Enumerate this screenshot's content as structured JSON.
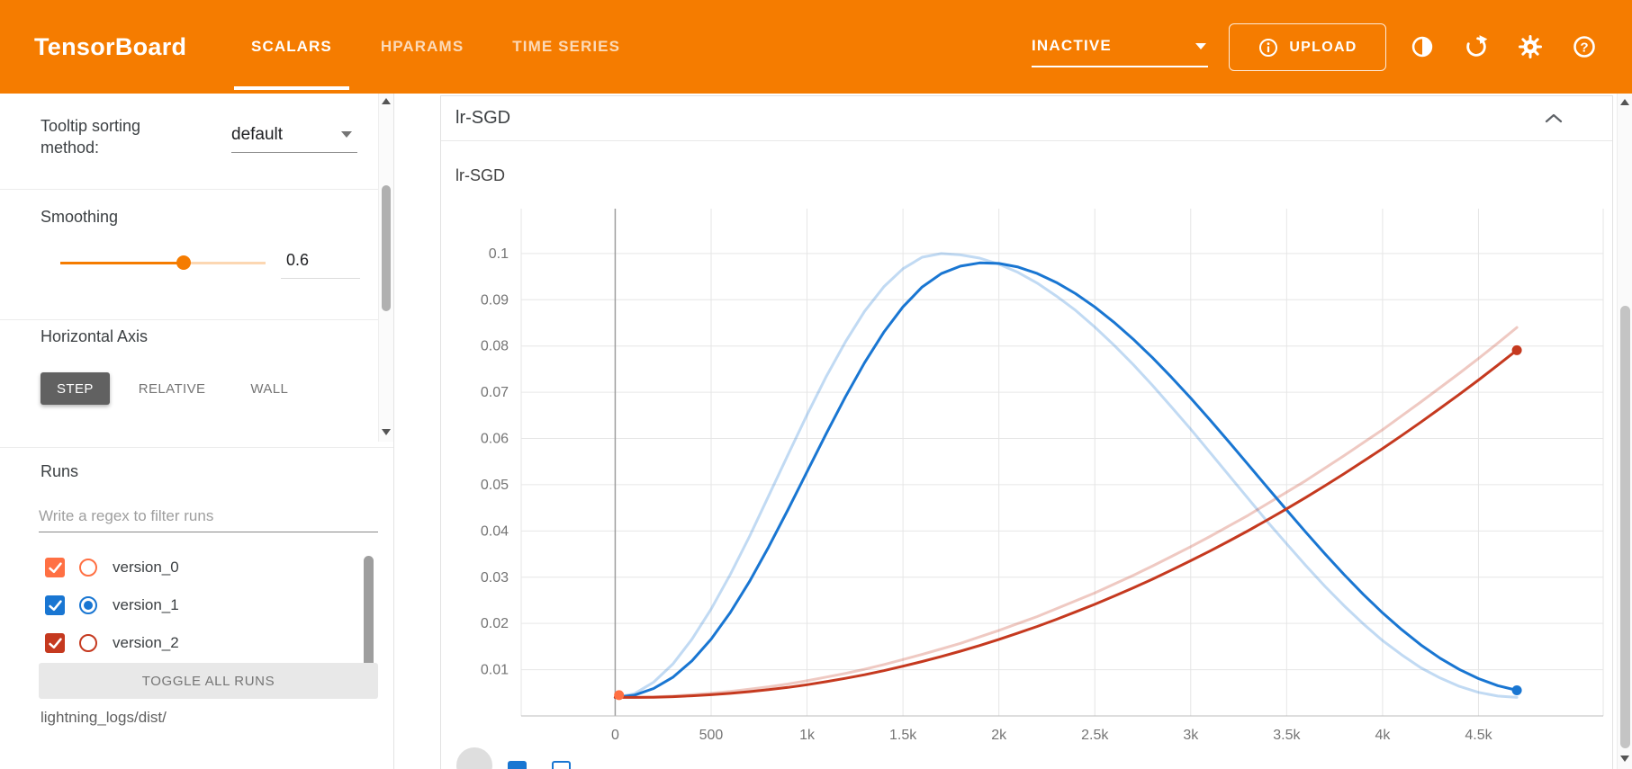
{
  "topbar": {
    "title": "TensorBoard",
    "tabs": [
      {
        "label": "SCALARS",
        "active": true
      },
      {
        "label": "HPARAMS",
        "active": false
      },
      {
        "label": "TIME SERIES",
        "active": false
      }
    ],
    "status_dropdown": "INACTIVE",
    "upload_label": "UPLOAD",
    "icons": [
      "info-circle-icon",
      "brightness-toggle-icon",
      "refresh-icon",
      "gear-icon",
      "help-icon"
    ],
    "color": "#f57c00"
  },
  "sidebar": {
    "tooltip_sorting": {
      "label": "Tooltip sorting method:",
      "value": "default"
    },
    "smoothing": {
      "label": "Smoothing",
      "value": "0.6",
      "fraction": 0.6
    },
    "horizontal_axis": {
      "label": "Horizontal Axis",
      "options": [
        {
          "label": "STEP",
          "active": true
        },
        {
          "label": "RELATIVE",
          "active": false
        },
        {
          "label": "WALL",
          "active": false
        }
      ]
    },
    "runs": {
      "label": "Runs",
      "filter_placeholder": "Write a regex to filter runs",
      "items": [
        {
          "name": "version_0",
          "color": "#ff7043",
          "checked": true,
          "radio_selected": false
        },
        {
          "name": "version_1",
          "color": "#1976d2",
          "checked": true,
          "radio_selected": true
        },
        {
          "name": "version_2",
          "color": "#c5391f",
          "checked": true,
          "radio_selected": false
        }
      ],
      "toggle_all_label": "TOGGLE ALL RUNS",
      "log_dir": "lightning_logs/dist/"
    }
  },
  "main": {
    "card_title": "lr-SGD"
  },
  "chart_data": {
    "type": "line",
    "title": "lr-SGD",
    "xlabel": "",
    "ylabel": "",
    "xlim": [
      -490,
      5150
    ],
    "ylim": [
      0,
      0.1097
    ],
    "grid": true,
    "legend": "none",
    "smoothing": 0.6,
    "x_ticks": [
      {
        "v": 0,
        "label": "0"
      },
      {
        "v": 500,
        "label": "500"
      },
      {
        "v": 1000,
        "label": "1k"
      },
      {
        "v": 1500,
        "label": "1.5k"
      },
      {
        "v": 2000,
        "label": "2k"
      },
      {
        "v": 2500,
        "label": "2.5k"
      },
      {
        "v": 3000,
        "label": "3k"
      },
      {
        "v": 3500,
        "label": "3.5k"
      },
      {
        "v": 4000,
        "label": "4k"
      },
      {
        "v": 4500,
        "label": "4.5k"
      }
    ],
    "y_ticks": [
      {
        "v": 0.01,
        "label": "0.01"
      },
      {
        "v": 0.02,
        "label": "0.02"
      },
      {
        "v": 0.03,
        "label": "0.03"
      },
      {
        "v": 0.04,
        "label": "0.04"
      },
      {
        "v": 0.05,
        "label": "0.05"
      },
      {
        "v": 0.06,
        "label": "0.06"
      },
      {
        "v": 0.07,
        "label": "0.07"
      },
      {
        "v": 0.08,
        "label": "0.08"
      },
      {
        "v": 0.09,
        "label": "0.09"
      },
      {
        "v": 0.1,
        "label": "0.1"
      }
    ],
    "series": [
      {
        "name": "version_1",
        "color": "#1976d2",
        "x0": 0,
        "dx": 100,
        "y": [
          0.004,
          0.0048,
          0.0073,
          0.0112,
          0.0166,
          0.0231,
          0.0306,
          0.0388,
          0.0476,
          0.0564,
          0.0651,
          0.0734,
          0.0809,
          0.0875,
          0.0928,
          0.0967,
          0.0992,
          0.1,
          0.0997,
          0.099,
          0.0977,
          0.0959,
          0.0936,
          0.0908,
          0.0877,
          0.0841,
          0.0802,
          0.076,
          0.0715,
          0.0668,
          0.062,
          0.057,
          0.052,
          0.047,
          0.042,
          0.0372,
          0.0325,
          0.028,
          0.0238,
          0.0199,
          0.0163,
          0.0132,
          0.0104,
          0.0082,
          0.0064,
          0.0051,
          0.0043,
          0.004
        ]
      },
      {
        "name": "version_2",
        "color": "#c5391f",
        "x0": 0,
        "dx": 100,
        "y": [
          0.004,
          0.004,
          0.0041,
          0.0043,
          0.0046,
          0.0049,
          0.0053,
          0.0058,
          0.0063,
          0.0069,
          0.0076,
          0.0084,
          0.0092,
          0.0101,
          0.0111,
          0.0122,
          0.0133,
          0.0145,
          0.0157,
          0.0171,
          0.0185,
          0.02,
          0.0215,
          0.0232,
          0.0249,
          0.0266,
          0.0285,
          0.0304,
          0.0324,
          0.0345,
          0.0366,
          0.0388,
          0.0411,
          0.0434,
          0.0459,
          0.0484,
          0.0509,
          0.0536,
          0.0563,
          0.0591,
          0.0619,
          0.0649,
          0.0679,
          0.071,
          0.0741,
          0.0773,
          0.0806,
          0.084
        ]
      }
    ],
    "markers": [
      {
        "run": "version_0",
        "step": 20,
        "value": 0.0045,
        "color": "#ff7043"
      }
    ]
  }
}
